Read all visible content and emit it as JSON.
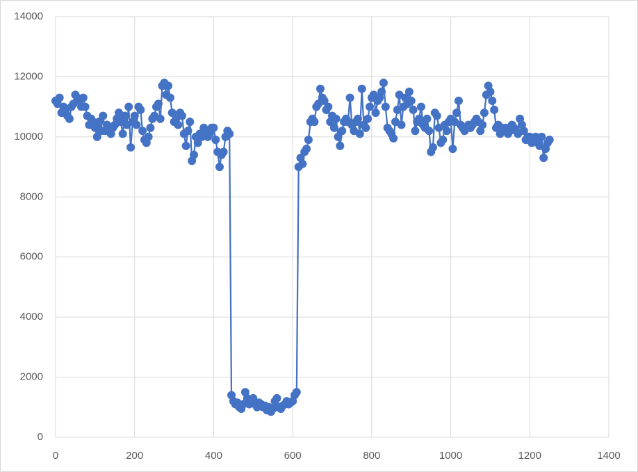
{
  "chart_data": {
    "type": "line",
    "color": "#4472c4",
    "grid": true,
    "markers": true,
    "xlim": [
      0,
      1400
    ],
    "xticks": [
      0,
      200,
      400,
      600,
      800,
      1000,
      1200,
      1400
    ],
    "ylim": [
      0,
      14000
    ],
    "yticks": [
      0,
      2000,
      4000,
      6000,
      8000,
      10000,
      12000,
      14000
    ],
    "x": [
      0,
      5,
      10,
      15,
      20,
      25,
      30,
      35,
      40,
      45,
      50,
      55,
      60,
      65,
      70,
      75,
      80,
      85,
      90,
      95,
      100,
      105,
      110,
      115,
      120,
      125,
      130,
      135,
      140,
      145,
      150,
      155,
      160,
      165,
      170,
      175,
      180,
      185,
      190,
      195,
      200,
      205,
      210,
      215,
      220,
      225,
      230,
      235,
      240,
      245,
      250,
      255,
      260,
      265,
      270,
      275,
      280,
      285,
      290,
      295,
      300,
      305,
      310,
      315,
      320,
      325,
      330,
      335,
      340,
      345,
      350,
      355,
      360,
      365,
      370,
      375,
      380,
      385,
      390,
      395,
      400,
      405,
      410,
      415,
      420,
      425,
      430,
      435,
      440,
      445,
      450,
      455,
      460,
      465,
      470,
      475,
      480,
      485,
      490,
      495,
      500,
      505,
      510,
      515,
      520,
      525,
      530,
      535,
      540,
      545,
      550,
      555,
      560,
      565,
      570,
      575,
      580,
      585,
      590,
      595,
      600,
      605,
      610,
      615,
      620,
      625,
      630,
      635,
      640,
      645,
      650,
      655,
      660,
      665,
      670,
      675,
      680,
      685,
      690,
      695,
      700,
      705,
      710,
      715,
      720,
      725,
      730,
      735,
      740,
      745,
      750,
      755,
      760,
      765,
      770,
      775,
      780,
      785,
      790,
      795,
      800,
      805,
      810,
      815,
      820,
      825,
      830,
      835,
      840,
      845,
      850,
      855,
      860,
      865,
      870,
      875,
      880,
      885,
      890,
      895,
      900,
      905,
      910,
      915,
      920,
      925,
      930,
      935,
      940,
      945,
      950,
      955,
      960,
      965,
      970,
      975,
      980,
      985,
      990,
      995,
      1000,
      1005,
      1010,
      1015,
      1020,
      1025,
      1030,
      1035,
      1040,
      1045,
      1050,
      1055,
      1060,
      1065,
      1070,
      1075,
      1080,
      1085,
      1090,
      1095,
      1100,
      1105,
      1110,
      1115,
      1120,
      1125,
      1130,
      1135,
      1140,
      1145,
      1150,
      1155,
      1160,
      1165,
      1170,
      1175,
      1180,
      1185,
      1190,
      1195,
      1200,
      1205,
      1210,
      1215,
      1220,
      1225,
      1230,
      1235,
      1240,
      1245,
      1250
    ],
    "values": [
      11200,
      11100,
      11300,
      10800,
      11000,
      10900,
      10700,
      10600,
      11000,
      11100,
      11400,
      11300,
      11200,
      11000,
      11300,
      11000,
      10700,
      10400,
      10600,
      10500,
      10300,
      10000,
      10500,
      10200,
      10700,
      10200,
      10400,
      10300,
      10100,
      10300,
      10400,
      10600,
      10800,
      10500,
      10100,
      10700,
      10400,
      11000,
      9650,
      10500,
      10700,
      10400,
      11000,
      10900,
      10200,
      9900,
      9800,
      10000,
      10300,
      10600,
      10700,
      11000,
      11100,
      10600,
      11700,
      11800,
      11400,
      11700,
      11300,
      10800,
      10500,
      10600,
      10400,
      10800,
      10700,
      10100,
      9700,
      10200,
      10500,
      9200,
      9400,
      10000,
      9800,
      10100,
      10000,
      10300,
      10200,
      10000,
      10100,
      10300,
      10300,
      9900,
      9500,
      9000,
      9400,
      9500,
      10000,
      10200,
      10100,
      1400,
      1200,
      1100,
      1150,
      1000,
      950,
      1100,
      1500,
      1300,
      1100,
      1200,
      1300,
      1100,
      1000,
      1150,
      1100,
      1000,
      1050,
      900,
      1000,
      850,
      950,
      1200,
      1300,
      1000,
      950,
      1050,
      1100,
      1200,
      1100,
      1150,
      1200,
      1400,
      1500,
      9000,
      9300,
      9100,
      9500,
      9600,
      9900,
      10500,
      10600,
      10500,
      11000,
      11100,
      11600,
      11300,
      11200,
      10900,
      11000,
      10500,
      10700,
      10300,
      10600,
      10000,
      9700,
      10200,
      10500,
      10600,
      10500,
      11300,
      10400,
      10200,
      10500,
      10600,
      10100,
      11600,
      10400,
      10300,
      10600,
      11000,
      11300,
      11400,
      10800,
      11200,
      11300,
      11500,
      11800,
      11000,
      10300,
      10200,
      10100,
      9950,
      10500,
      10900,
      11400,
      10400,
      11000,
      11300,
      11100,
      11500,
      11200,
      10900,
      10200,
      10500,
      10600,
      11000,
      10400,
      10300,
      10600,
      10200,
      9500,
      9650,
      10800,
      10700,
      10300,
      9800,
      9900,
      10400,
      10200,
      10500,
      10600,
      9600,
      10500,
      10800,
      11200,
      10400,
      10300,
      10200,
      10300,
      10400,
      10300,
      10400,
      10500,
      10600,
      10500,
      10200,
      10400,
      10800,
      11400,
      11700,
      11500,
      11200,
      10900,
      10300,
      10400,
      10100,
      10300,
      10200,
      10300,
      10100,
      10200,
      10400,
      10300,
      10200,
      10100,
      10600,
      10400,
      10200,
      9900,
      10000,
      10000,
      9800,
      9900,
      10000,
      9800,
      9700,
      10000,
      9300,
      9600,
      9800,
      9900
    ]
  }
}
